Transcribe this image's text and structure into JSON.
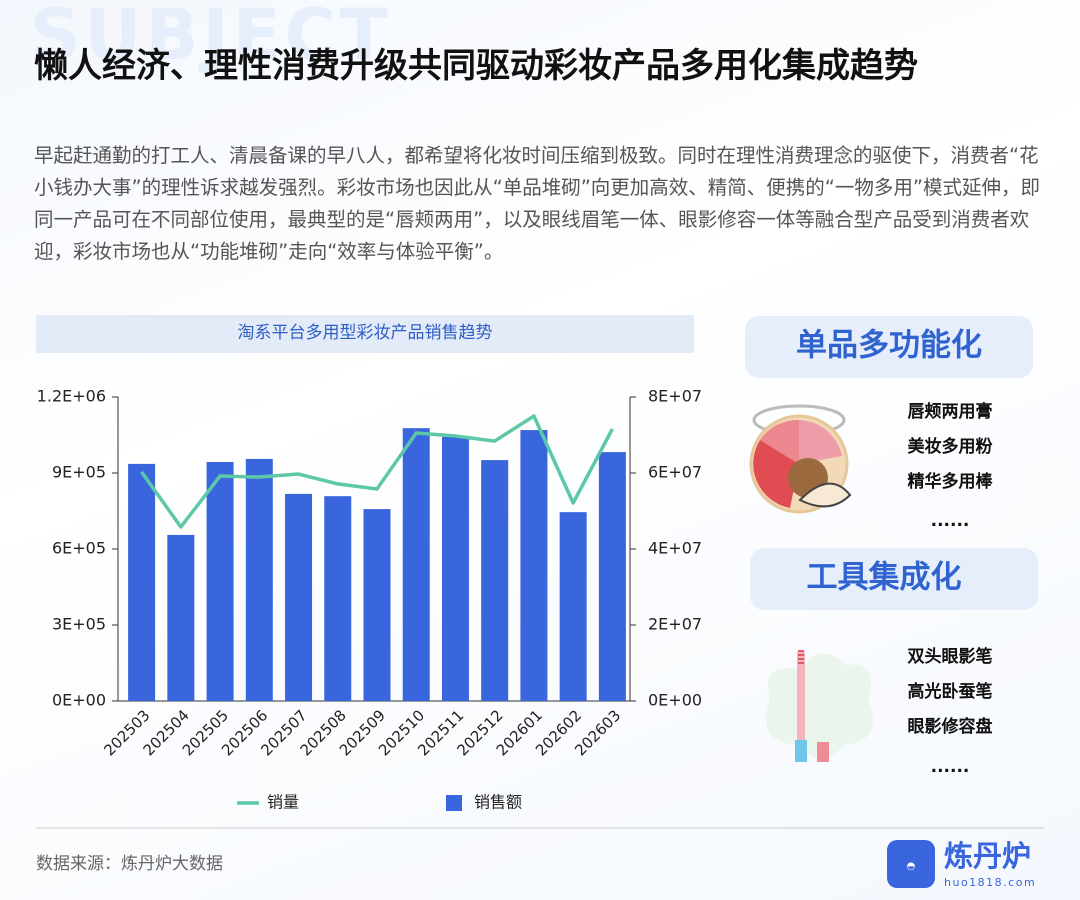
{
  "header": {
    "watermark": "SUBJECT",
    "title": "懒人经济、理性消费升级共同驱动彩妆产品多用化集成趋势"
  },
  "intro": "早起赶通勤的打工人、清晨备课的早八人，都希望将化妆时间压缩到极致。同时在理性消费理念的驱使下，消费者“花小钱办大事”的理性诉求越发强烈。彩妆市场也因此从“单品堆砌”向更加高效、精简、便携的“一物多用”模式延伸，即同一产品可在不同部位使用，最典型的是“唇颊两用”，以及眼线眉笔一体、眼影修容一体等融合型产品受到消费者欢迎，彩妆市场也从“功能堆砌”走向“效率与体验平衡”。",
  "chart_data": {
    "type": "bar-line",
    "title": "淘系平台多用型彩妆产品销售趋势",
    "categories": [
      "202503",
      "202504",
      "202505",
      "202506",
      "202507",
      "202508",
      "202509",
      "202510",
      "202511",
      "202512",
      "202601",
      "202602",
      "202603"
    ],
    "series": [
      {
        "name": "销量",
        "type": "line",
        "color": "#5cc8a8",
        "axis": "y",
        "values": [
          904000,
          687000,
          888000,
          884000,
          896000,
          857000,
          837000,
          1058000,
          1046000,
          1026000,
          1125000,
          782000,
          1074000
        ]
      },
      {
        "name": "销售额",
        "type": "bar",
        "color": "#3a66dd",
        "axis": "y2",
        "values": [
          62400000,
          43700000,
          62900000,
          63700000,
          54500000,
          53900000,
          50500000,
          71800000,
          69500000,
          63400000,
          71300000,
          49700000,
          65500000
        ]
      }
    ],
    "ylim": [
      0,
      1200000
    ],
    "yticks": [
      {
        "value": 0,
        "label": "0E+00"
      },
      {
        "value": 300000,
        "label": "3E+05"
      },
      {
        "value": 600000,
        "label": "6E+05"
      },
      {
        "value": 900000,
        "label": "9E+05"
      },
      {
        "value": 1200000,
        "label": "1.2E+06"
      }
    ],
    "y2lim": [
      0,
      80000000
    ],
    "y2ticks": [
      {
        "value": 0,
        "label": "0E+00"
      },
      {
        "value": 20000000,
        "label": "2E+07"
      },
      {
        "value": 40000000,
        "label": "4E+07"
      },
      {
        "value": 60000000,
        "label": "6E+07"
      },
      {
        "value": 80000000,
        "label": "8E+07"
      }
    ],
    "legend": "bottom"
  },
  "panels": [
    {
      "title": "单品多功能化",
      "items": [
        "唇颊两用膏",
        "美妆多用粉",
        "精华多用棒",
        "......"
      ]
    },
    {
      "title": "工具集成化",
      "items": [
        "双头眼影笔",
        "高光卧蚕笔",
        "眼影修容盘",
        "......"
      ]
    }
  ],
  "footer": {
    "source": "数据来源：炼丹炉大数据"
  },
  "logo": {
    "name": "炼丹炉",
    "url": "huo1818.com"
  }
}
